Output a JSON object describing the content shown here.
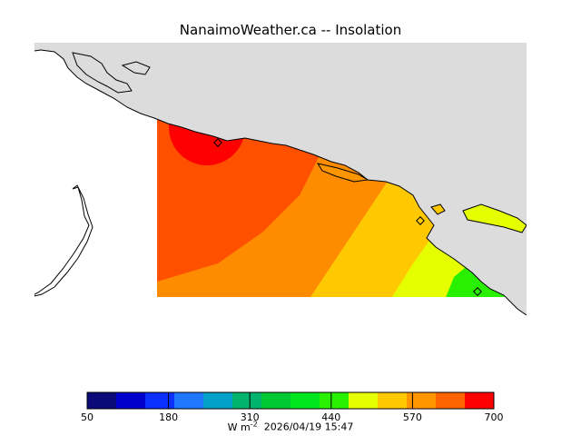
{
  "title": "NanaimoWeather.ca -- Insolation",
  "units_prefix": "W m",
  "units_exp": "-2",
  "timestamp": "2026/04/19 15:47",
  "colorbar": {
    "ticks": [
      "50",
      "180",
      "310",
      "440",
      "570",
      "700"
    ],
    "colors": [
      "#0a0a7a",
      "#0000cd",
      "#0a2fff",
      "#1e78ff",
      "#00a0c8",
      "#00b46e",
      "#00c832",
      "#00e61e",
      "#28f000",
      "#e6ff00",
      "#ffc800",
      "#ff9600",
      "#ff6400",
      "#ff0000"
    ]
  },
  "colors": {
    "land": "#dcdcdc",
    "water": "#ffffff",
    "contour_700": "#ff0000",
    "contour_650": "#ff5000",
    "contour_600": "#ff8c00",
    "contour_560": "#ffc800",
    "contour_520": "#e6ff00",
    "contour_480": "#28f000"
  }
}
